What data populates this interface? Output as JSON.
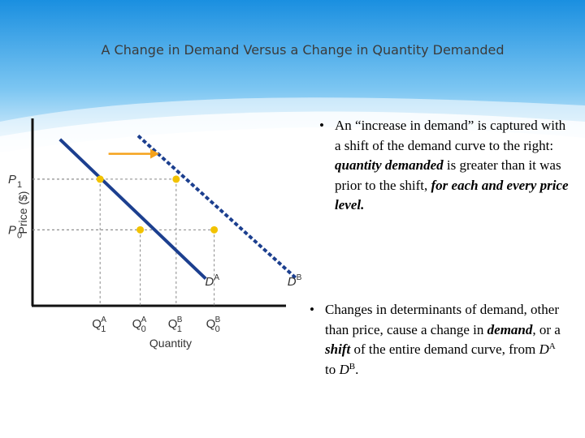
{
  "slide": {
    "title": "A Change in Demand Versus a Change in Quantity Demanded",
    "bullets": [
      {
        "marker": "•",
        "parts": [
          {
            "text": "An “increase in demand” is captured with a shift of the demand curve to the right: ",
            "style": "normal"
          },
          {
            "text": "quantity demanded",
            "style": "bold-italic"
          },
          {
            "text": " is greater than it was prior to the shift, ",
            "style": "normal"
          },
          {
            "text": "for each and every price level.",
            "style": "bold-italic"
          }
        ]
      },
      {
        "marker": "•",
        "parts": [
          {
            "text": "Changes in determinants of demand, other than price, cause a change in ",
            "style": "normal"
          },
          {
            "text": "demand",
            "style": "bold-italic"
          },
          {
            "text": ", or a ",
            "style": "normal"
          },
          {
            "text": "shift",
            "style": "bold-italic"
          },
          {
            "text": " of the entire demand curve, from ",
            "style": "normal"
          },
          {
            "text": "D",
            "style": "italic"
          },
          {
            "text": "A",
            "style": "sup"
          },
          {
            "text": " to ",
            "style": "normal"
          },
          {
            "text": "D",
            "style": "italic"
          },
          {
            "text": "B",
            "style": "sup"
          },
          {
            "text": ".",
            "style": "normal"
          }
        ]
      }
    ]
  },
  "colors": {
    "header_top": "#1a8fe0",
    "header_bottom": "#ffffff",
    "curve": "#1c3f8f",
    "point": "#f2c200",
    "arrow": "#f5a21b",
    "axis": "#111111",
    "guide": "#888888"
  },
  "chart_data": {
    "type": "line",
    "title": "",
    "xlabel": "Quantity",
    "ylabel": "Price ($)",
    "xlim": [
      0,
      10
    ],
    "ylim": [
      0,
      10
    ],
    "price_levels": [
      {
        "label": "P",
        "sub": "1",
        "value": 7.0
      },
      {
        "label": "P",
        "sub": "0",
        "value": 4.2
      }
    ],
    "quantity_ticks": [
      {
        "label": "Q",
        "sub": "1",
        "sup": "A",
        "value": 3.2
      },
      {
        "label": "Q",
        "sub": "0",
        "sup": "A",
        "value": 5.1
      },
      {
        "label": "Q",
        "sub": "1",
        "sup": "B",
        "value": 6.8
      },
      {
        "label": "Q",
        "sub": "0",
        "sup": "B",
        "value": 8.6
      }
    ],
    "series": [
      {
        "name": "D",
        "sup": "A",
        "style": "solid",
        "x": [
          1.3,
          8.2
        ],
        "y": [
          9.2,
          1.5
        ],
        "label_at": [
          8.4,
          1.4
        ]
      },
      {
        "name": "D",
        "sup": "B",
        "style": "dashed",
        "x": [
          5.0,
          12.5
        ],
        "y": [
          9.4,
          1.5
        ],
        "label_at": [
          12.3,
          1.4
        ]
      }
    ],
    "points": [
      {
        "x": 3.2,
        "y": 7.0
      },
      {
        "x": 5.1,
        "y": 4.2
      },
      {
        "x": 6.8,
        "y": 7.0
      },
      {
        "x": 8.6,
        "y": 4.2
      }
    ],
    "shift_arrow": {
      "from": [
        3.6,
        8.4
      ],
      "to": [
        6.0,
        8.4
      ]
    },
    "grid": false,
    "legend": "none"
  }
}
